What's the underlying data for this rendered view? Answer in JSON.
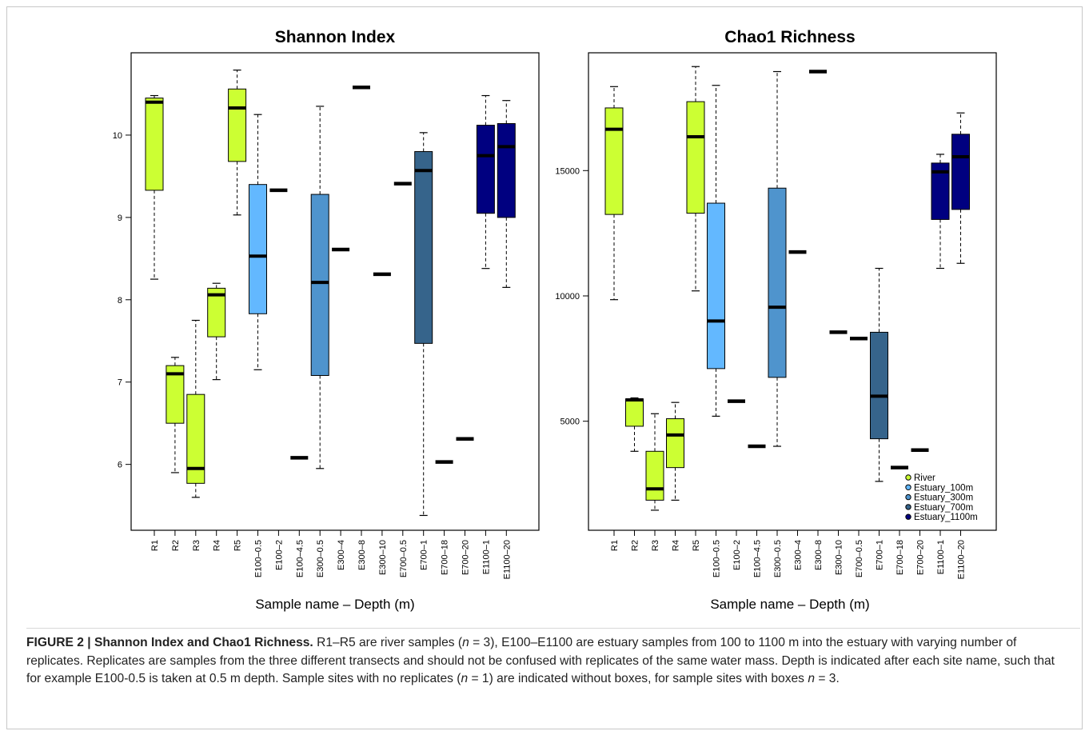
{
  "colors": {
    "River": "#ccff33",
    "Estuary_100m": "#63b8ff",
    "Estuary_300m": "#4f94cd",
    "Estuary_700m": "#36648b",
    "Estuary_1100m": "#000080"
  },
  "caption": {
    "label": "FIGURE 2 | Shannon Index and Chao1 Richness.",
    "part1": " R1–R5 are river samples (",
    "n": "n",
    "eq3": " = 3), E100–E1100 are estuary samples from 100 to 1100 m into the estuary with varying number of replicates. Replicates are samples from the three different transects and should not be confused with replicates of the same water mass. Depth is indicated after each site name, such that for example E100-0.5 is taken at 0.5 m depth. Sample sites with no replicates (",
    "eq1": " = 1) are indicated without boxes, for sample sites with boxes ",
    "end": " = 3."
  },
  "chart_data": [
    {
      "type": "box",
      "title": "Shannon Index",
      "xlabel": "Sample name – Depth (m)",
      "ylabel": "",
      "ylim": [
        5.2,
        11.0
      ],
      "yticks": [
        6,
        7,
        8,
        9,
        10
      ],
      "categories": [
        "R1",
        "R2",
        "R3",
        "R4",
        "R5",
        "E100–0.5",
        "E100–2",
        "E100–4.5",
        "E300–0.5",
        "E300–4",
        "E300–8",
        "E300–10",
        "E700–0.5",
        "E700–1",
        "E700–18",
        "E700–20",
        "E1100–1",
        "E1100–20"
      ],
      "groups": [
        "River",
        "River",
        "River",
        "River",
        "River",
        "Estuary_100m",
        "Estuary_100m",
        "Estuary_100m",
        "Estuary_300m",
        "Estuary_300m",
        "Estuary_300m",
        "Estuary_300m",
        "Estuary_700m",
        "Estuary_700m",
        "Estuary_700m",
        "Estuary_700m",
        "Estuary_1100m",
        "Estuary_1100m"
      ],
      "boxes": [
        {
          "min": 8.25,
          "q1": 9.33,
          "median": 10.4,
          "q3": 10.45,
          "max": 10.48
        },
        {
          "min": 5.9,
          "q1": 6.5,
          "median": 7.1,
          "q3": 7.2,
          "max": 7.3
        },
        {
          "min": 5.6,
          "q1": 5.77,
          "median": 5.95,
          "q3": 6.85,
          "max": 7.75
        },
        {
          "min": 7.03,
          "q1": 7.55,
          "median": 8.06,
          "q3": 8.14,
          "max": 8.2
        },
        {
          "min": 9.03,
          "q1": 9.68,
          "median": 10.33,
          "q3": 10.56,
          "max": 10.79
        },
        {
          "min": 7.15,
          "q1": 7.83,
          "median": 8.53,
          "q3": 9.4,
          "max": 10.25
        },
        {
          "value": 9.33
        },
        {
          "value": 6.08
        },
        {
          "min": 5.95,
          "q1": 7.08,
          "median": 8.21,
          "q3": 9.28,
          "max": 10.35
        },
        {
          "value": 8.61
        },
        {
          "value": 10.58
        },
        {
          "value": 8.31
        },
        {
          "value": 9.41
        },
        {
          "min": 5.38,
          "q1": 7.47,
          "median": 9.57,
          "q3": 9.8,
          "max": 10.03
        },
        {
          "value": 6.03
        },
        {
          "value": 6.31
        },
        {
          "min": 8.38,
          "q1": 9.05,
          "median": 9.75,
          "q3": 10.12,
          "max": 10.48
        },
        {
          "min": 8.15,
          "q1": 9.0,
          "median": 9.86,
          "q3": 10.14,
          "max": 10.42
        }
      ]
    },
    {
      "type": "box",
      "title": "Chao1 Richness",
      "xlabel": "Sample name – Depth (m)",
      "ylabel": "",
      "ylim": [
        650,
        19700
      ],
      "yticks": [
        5000,
        10000,
        15000
      ],
      "categories": [
        "R1",
        "R2",
        "R3",
        "R4",
        "R5",
        "E100–0.5",
        "E100–2",
        "E100–4.5",
        "E300–0.5",
        "E300–4",
        "E300–8",
        "E300–10",
        "E700–0.5",
        "E700–1",
        "E700–18",
        "E700–20",
        "E1100–1",
        "E1100–20"
      ],
      "groups": [
        "River",
        "River",
        "River",
        "River",
        "River",
        "Estuary_100m",
        "Estuary_100m",
        "Estuary_100m",
        "Estuary_300m",
        "Estuary_300m",
        "Estuary_300m",
        "Estuary_300m",
        "Estuary_700m",
        "Estuary_700m",
        "Estuary_700m",
        "Estuary_700m",
        "Estuary_1100m",
        "Estuary_1100m"
      ],
      "boxes": [
        {
          "min": 9850,
          "q1": 13250,
          "median": 16650,
          "q3": 17500,
          "max": 18350
        },
        {
          "min": 3800,
          "q1": 4800,
          "median": 5850,
          "q3": 5890,
          "max": 5930
        },
        {
          "min": 1450,
          "q1": 1850,
          "median": 2300,
          "q3": 3800,
          "max": 5300
        },
        {
          "min": 1850,
          "q1": 3150,
          "median": 4450,
          "q3": 5100,
          "max": 5750
        },
        {
          "min": 10200,
          "q1": 13300,
          "median": 16350,
          "q3": 17750,
          "max": 19150
        },
        {
          "min": 5200,
          "q1": 7100,
          "median": 9000,
          "q3": 13700,
          "max": 18400
        },
        {
          "value": 5800
        },
        {
          "value": 4000
        },
        {
          "min": 4000,
          "q1": 6750,
          "median": 9550,
          "q3": 14300,
          "max": 18950
        },
        {
          "value": 11750
        },
        {
          "value": 18950
        },
        {
          "value": 8550
        },
        {
          "value": 8300
        },
        {
          "min": 2600,
          "q1": 4300,
          "median": 6000,
          "q3": 8550,
          "max": 11100
        },
        {
          "value": 3150
        },
        {
          "value": 3850
        },
        {
          "min": 11100,
          "q1": 13050,
          "median": 14950,
          "q3": 15300,
          "max": 15650
        },
        {
          "min": 11300,
          "q1": 13450,
          "median": 15550,
          "q3": 16450,
          "max": 17300
        }
      ],
      "legend": {
        "position": "bottom-right",
        "entries": [
          "River",
          "Estuary_100m",
          "Estuary_300m",
          "Estuary_700m",
          "Estuary_1100m"
        ]
      }
    }
  ]
}
